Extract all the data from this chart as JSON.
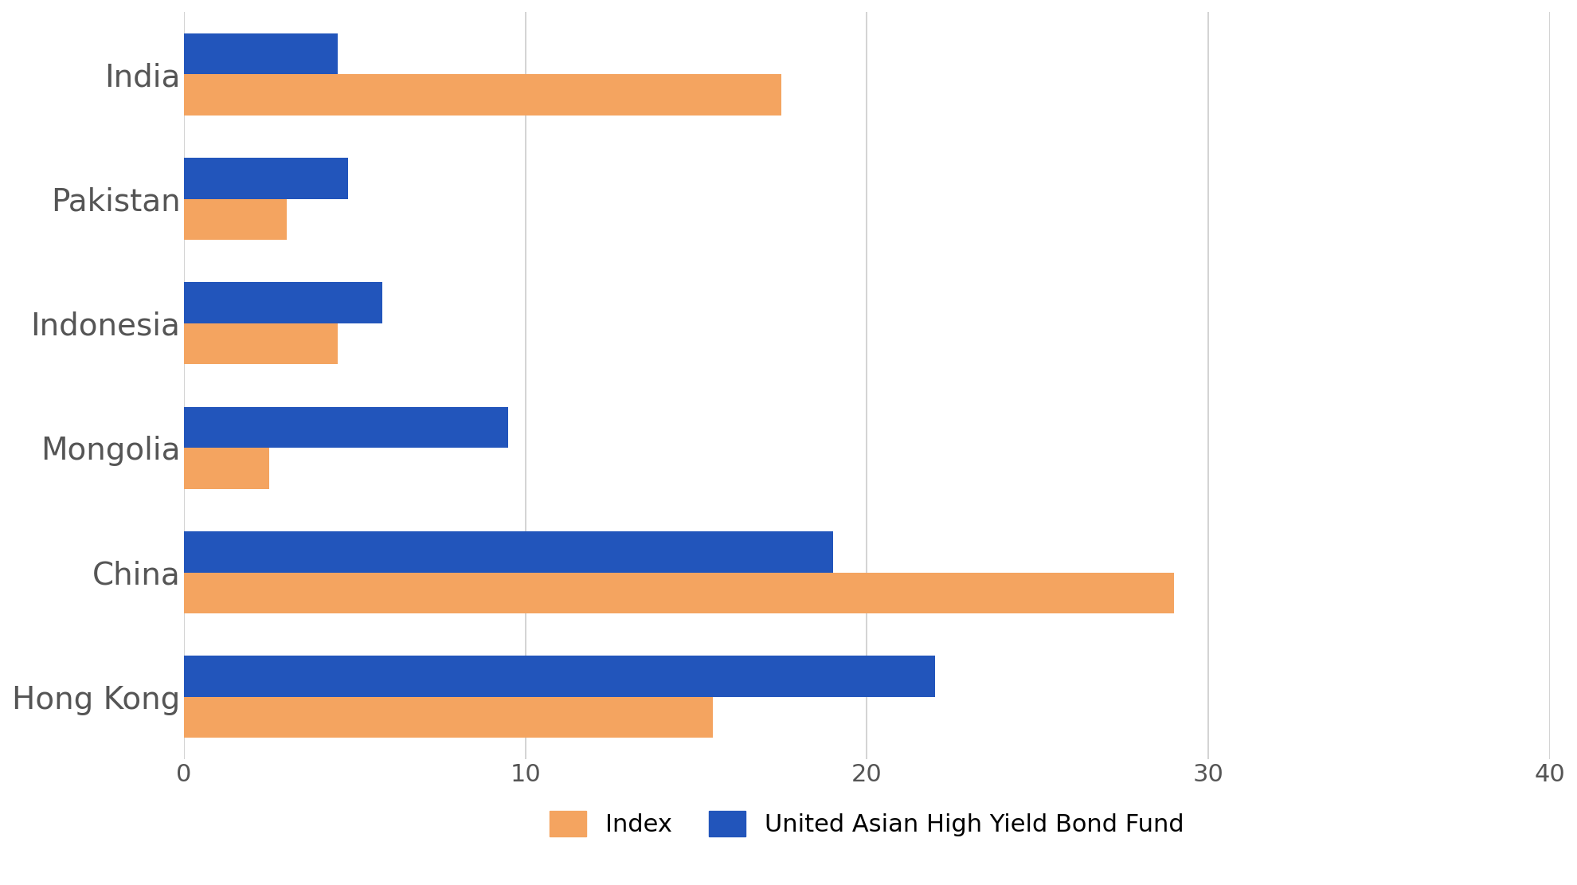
{
  "categories": [
    "India",
    "Pakistan",
    "Indonesia",
    "Mongolia",
    "China",
    "Hong Kong"
  ],
  "index_values": [
    17.5,
    3.0,
    4.5,
    2.5,
    29.0,
    15.5
  ],
  "fund_values": [
    4.5,
    4.8,
    5.8,
    9.5,
    19.0,
    22.0
  ],
  "index_color": "#F4A460",
  "fund_color": "#2255BB",
  "xlim": [
    0,
    40
  ],
  "xticks": [
    0,
    10,
    20,
    30,
    40
  ],
  "legend_labels": [
    "Index",
    "United Asian High Yield Bond Fund"
  ],
  "background_color": "#FFFFFF",
  "grid_color": "#CCCCCC",
  "bar_height": 0.33,
  "tick_label_color": "#555555",
  "tick_fontsize": 22,
  "label_fontsize": 28,
  "legend_fontsize": 22
}
